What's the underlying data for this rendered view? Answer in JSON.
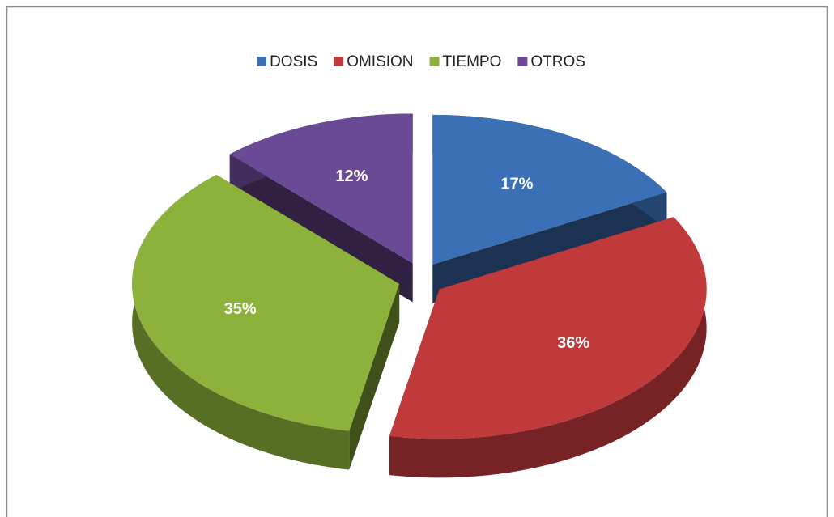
{
  "chart_data": {
    "type": "pie3d",
    "categories": [
      "DOSIS",
      "OMISION",
      "TIEMPO",
      "OTROS"
    ],
    "values": [
      17,
      36,
      35,
      12
    ],
    "value_labels": [
      "17%",
      "36%",
      "35%",
      "12%"
    ],
    "colors": [
      "#3b6fb6",
      "#c0393b",
      "#8cb23b",
      "#6b4a95"
    ],
    "legend": "top"
  }
}
